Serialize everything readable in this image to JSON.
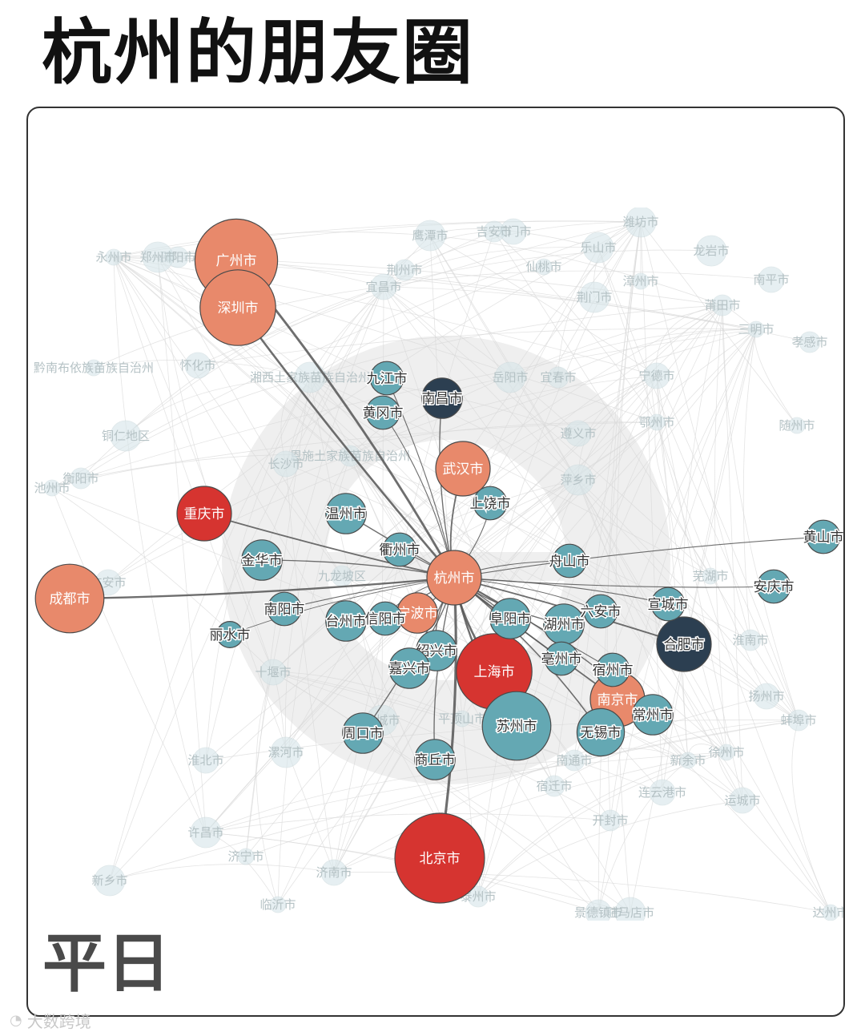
{
  "title": "杭州的朋友圈",
  "period_label": "平日",
  "watermark": {
    "icon": "logo-icon",
    "text": "大数跨境"
  },
  "colors": {
    "orange": "#e8896b",
    "red": "#d63430",
    "teal": "#64a8b3",
    "navy": "#2c3f51",
    "edge": "#555555",
    "faint_node": "#d7e6ea",
    "faint_edge": "#d8d8d8",
    "faint_text": "#b5c2c5",
    "bg_logo": "#efefef"
  },
  "chart_data": {
    "type": "network",
    "center": "杭州市",
    "nodes": [
      {
        "id": "杭州市",
        "color": "orange",
        "weight": 5
      },
      {
        "id": "广州市",
        "color": "orange",
        "weight": 9
      },
      {
        "id": "深圳市",
        "color": "orange",
        "weight": 8
      },
      {
        "id": "九江市",
        "color": "teal",
        "weight": 2
      },
      {
        "id": "南昌市",
        "color": "navy",
        "weight": 3
      },
      {
        "id": "黄冈市",
        "color": "teal",
        "weight": 2
      },
      {
        "id": "武汉市",
        "color": "orange",
        "weight": 5
      },
      {
        "id": "上饶市",
        "color": "teal",
        "weight": 2
      },
      {
        "id": "温州市",
        "color": "teal",
        "weight": 3
      },
      {
        "id": "重庆市",
        "color": "red",
        "weight": 5
      },
      {
        "id": "衢州市",
        "color": "teal",
        "weight": 2
      },
      {
        "id": "金华市",
        "color": "teal",
        "weight": 3
      },
      {
        "id": "成都市",
        "color": "orange",
        "weight": 7
      },
      {
        "id": "南阳市",
        "color": "teal",
        "weight": 2
      },
      {
        "id": "丽水市",
        "color": "teal",
        "weight": 1
      },
      {
        "id": "台州市",
        "color": "teal",
        "weight": 3
      },
      {
        "id": "信阳市",
        "color": "teal",
        "weight": 2
      },
      {
        "id": "宁波市",
        "color": "orange",
        "weight": 3
      },
      {
        "id": "绍兴市",
        "color": "teal",
        "weight": 3
      },
      {
        "id": "嘉兴市",
        "color": "teal",
        "weight": 3
      },
      {
        "id": "上海市",
        "color": "red",
        "weight": 8
      },
      {
        "id": "阜阳市",
        "color": "teal",
        "weight": 3
      },
      {
        "id": "舟山市",
        "color": "teal",
        "weight": 2
      },
      {
        "id": "六安市",
        "color": "teal",
        "weight": 2
      },
      {
        "id": "湖州市",
        "color": "teal",
        "weight": 3
      },
      {
        "id": "宣城市",
        "color": "teal",
        "weight": 2
      },
      {
        "id": "亳州市",
        "color": "teal",
        "weight": 2
      },
      {
        "id": "宿州市",
        "color": "teal",
        "weight": 2
      },
      {
        "id": "南京市",
        "color": "orange",
        "weight": 5
      },
      {
        "id": "常州市",
        "color": "teal",
        "weight": 3
      },
      {
        "id": "苏州市",
        "color": "teal",
        "weight": 7
      },
      {
        "id": "无锡市",
        "color": "teal",
        "weight": 4
      },
      {
        "id": "合肥市",
        "color": "navy",
        "weight": 5
      },
      {
        "id": "安庆市",
        "color": "teal",
        "weight": 2
      },
      {
        "id": "黄山市",
        "color": "teal",
        "weight": 2
      },
      {
        "id": "周口市",
        "color": "teal",
        "weight": 3
      },
      {
        "id": "商丘市",
        "color": "teal",
        "weight": 3
      },
      {
        "id": "北京市",
        "color": "red",
        "weight": 10
      }
    ],
    "faint_nodes": [
      "永州市",
      "邵阳市",
      "天门市",
      "潍坊市",
      "仙桃市",
      "荆州市",
      "宜昌市",
      "龙岩市",
      "漳州市",
      "莆田市",
      "南平市",
      "荆门市",
      "三明市",
      "孝感市",
      "怀化市",
      "湘西土家族苗族自治州",
      "黔南布依族苗族自治州",
      "宜春市",
      "宁德市",
      "铜仁地区",
      "随州市",
      "恩施土家族苗族自治州",
      "遵义市",
      "岳阳市",
      "鄂州市",
      "衡阳市",
      "广安市",
      "萍乡市",
      "芜湖市",
      "淮南市",
      "十堰市",
      "盐城市",
      "平顶山市",
      "蚌埠市",
      "淮北市",
      "漯河市",
      "徐州市",
      "宿迁市",
      "连云港市",
      "许昌市",
      "济宁市",
      "开封市",
      "济南市",
      "新乡市",
      "临沂市",
      "泰州市",
      "扬州市",
      "驻马店市",
      "新余市",
      "吉安市",
      "景德镇市",
      "鹰潭市",
      "达州市",
      "南通市",
      "运城市",
      "乐山市",
      "池州市",
      "九龙坡区",
      "长沙市",
      "郑州市"
    ]
  }
}
